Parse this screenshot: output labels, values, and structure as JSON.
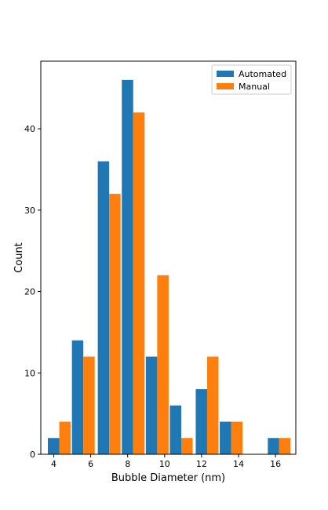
{
  "chart_data": {
    "type": "bar",
    "title": "",
    "xlabel": "Bubble Diameter (nm)",
    "ylabel": "Count",
    "x_bins_center": [
      4.3,
      5.6,
      7.0,
      8.3,
      9.6,
      10.9,
      12.3,
      13.6,
      14.9,
      16.2
    ],
    "series": [
      {
        "name": "Automated",
        "color": "#1f77b4",
        "values": [
          2,
          14,
          36,
          46,
          12,
          6,
          8,
          4,
          0,
          2
        ]
      },
      {
        "name": "Manual",
        "color": "#ff7f0e",
        "values": [
          4,
          12,
          32,
          42,
          22,
          2,
          12,
          4,
          0,
          2
        ]
      }
    ],
    "x_ticks": [
      4,
      6,
      8,
      10,
      12,
      14,
      16
    ],
    "y_ticks": [
      0,
      10,
      20,
      30,
      40
    ],
    "xlim": [
      3.3,
      17.1
    ],
    "ylim": [
      0,
      48.3
    ],
    "grid": false,
    "legend_position": "top-right"
  }
}
